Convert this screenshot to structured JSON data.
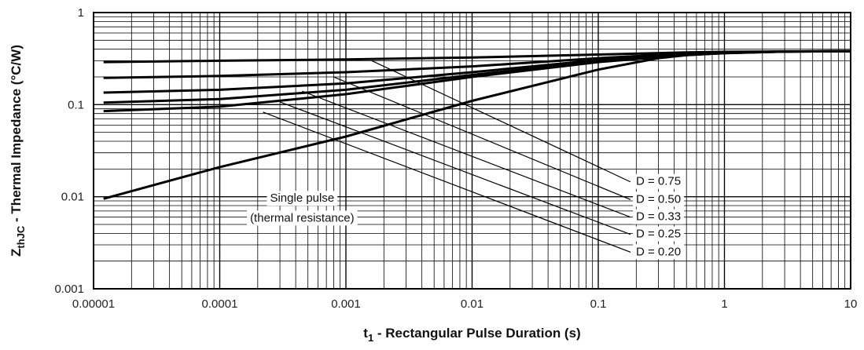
{
  "chart_data": {
    "type": "line",
    "title": "",
    "xlabel": {
      "main": "t",
      "sub": "1",
      "rest": " - Rectangular Pulse Duration (s)"
    },
    "ylabel": {
      "main": "Z",
      "sub": "thJC",
      "rest": " - Thermal Impedance (°C/W)"
    },
    "x_scale": "log",
    "y_scale": "log",
    "xlim": [
      1e-05,
      10
    ],
    "ylim": [
      0.001,
      1
    ],
    "grid": true,
    "x_tick_values": [
      1e-05,
      0.0001,
      0.001,
      0.01,
      0.1,
      1,
      10
    ],
    "x_tick_labels": [
      "0.00001",
      "0.0001",
      "0.001",
      "0.01",
      "0.1",
      "1",
      "10"
    ],
    "y_tick_values": [
      0.001,
      0.01,
      0.1,
      1
    ],
    "y_tick_labels": [
      "0.001",
      "0.01",
      "0.1",
      "1"
    ],
    "series": [
      {
        "name": "D = 0.75",
        "x": [
          1.2e-05,
          0.0001,
          0.001,
          0.01,
          0.1,
          0.5,
          1,
          3,
          10
        ],
        "y": [
          0.29,
          0.3,
          0.31,
          0.325,
          0.35,
          0.37,
          0.375,
          0.378,
          0.38
        ]
      },
      {
        "name": "D = 0.50",
        "x": [
          1.2e-05,
          0.0001,
          0.001,
          0.01,
          0.1,
          0.5,
          1,
          3,
          10
        ],
        "y": [
          0.195,
          0.205,
          0.225,
          0.26,
          0.32,
          0.36,
          0.37,
          0.378,
          0.38
        ]
      },
      {
        "name": "D = 0.33",
        "x": [
          1.2e-05,
          0.0001,
          0.001,
          0.01,
          0.1,
          0.5,
          1,
          3,
          10
        ],
        "y": [
          0.135,
          0.145,
          0.17,
          0.225,
          0.305,
          0.355,
          0.368,
          0.378,
          0.38
        ]
      },
      {
        "name": "D = 0.25",
        "x": [
          1.2e-05,
          0.0001,
          0.001,
          0.01,
          0.1,
          0.5,
          1,
          3,
          10
        ],
        "y": [
          0.105,
          0.115,
          0.145,
          0.21,
          0.295,
          0.35,
          0.365,
          0.377,
          0.38
        ]
      },
      {
        "name": "D = 0.20",
        "x": [
          1.2e-05,
          0.0001,
          0.001,
          0.01,
          0.1,
          0.5,
          1,
          3,
          10
        ],
        "y": [
          0.085,
          0.095,
          0.13,
          0.2,
          0.29,
          0.345,
          0.362,
          0.377,
          0.38
        ]
      },
      {
        "name": "Single pulse (thermal resistance)",
        "x": [
          1.2e-05,
          0.0001,
          0.001,
          0.01,
          0.1,
          0.3,
          0.5,
          1,
          3,
          10
        ],
        "y": [
          0.0095,
          0.021,
          0.045,
          0.11,
          0.24,
          0.32,
          0.345,
          0.362,
          0.377,
          0.38
        ]
      }
    ],
    "annotations": [
      {
        "label": "D = 0.75",
        "x": 0.3,
        "y": 0.0145
      },
      {
        "label": "D = 0.50",
        "x": 0.3,
        "y": 0.0093
      },
      {
        "label": "D = 0.33",
        "x": 0.3,
        "y": 0.006
      },
      {
        "label": "D = 0.25",
        "x": 0.3,
        "y": 0.0039
      },
      {
        "label": "D = 0.20",
        "x": 0.3,
        "y": 0.0025
      },
      {
        "label": "Single pulse",
        "x": 0.00045,
        "y": 0.0095
      },
      {
        "label": "(thermal resistance)",
        "x": 0.00045,
        "y": 0.0058
      }
    ],
    "leaders": [
      {
        "from": [
          0.0016,
          0.3
        ],
        "to": [
          0.18,
          0.0145
        ]
      },
      {
        "from": [
          0.0008,
          0.2
        ],
        "to": [
          0.18,
          0.0093
        ]
      },
      {
        "from": [
          0.00045,
          0.14
        ],
        "to": [
          0.18,
          0.006
        ]
      },
      {
        "from": [
          0.0003,
          0.107
        ],
        "to": [
          0.18,
          0.0039
        ]
      },
      {
        "from": [
          0.00022,
          0.083
        ],
        "to": [
          0.18,
          0.0025
        ]
      }
    ]
  }
}
